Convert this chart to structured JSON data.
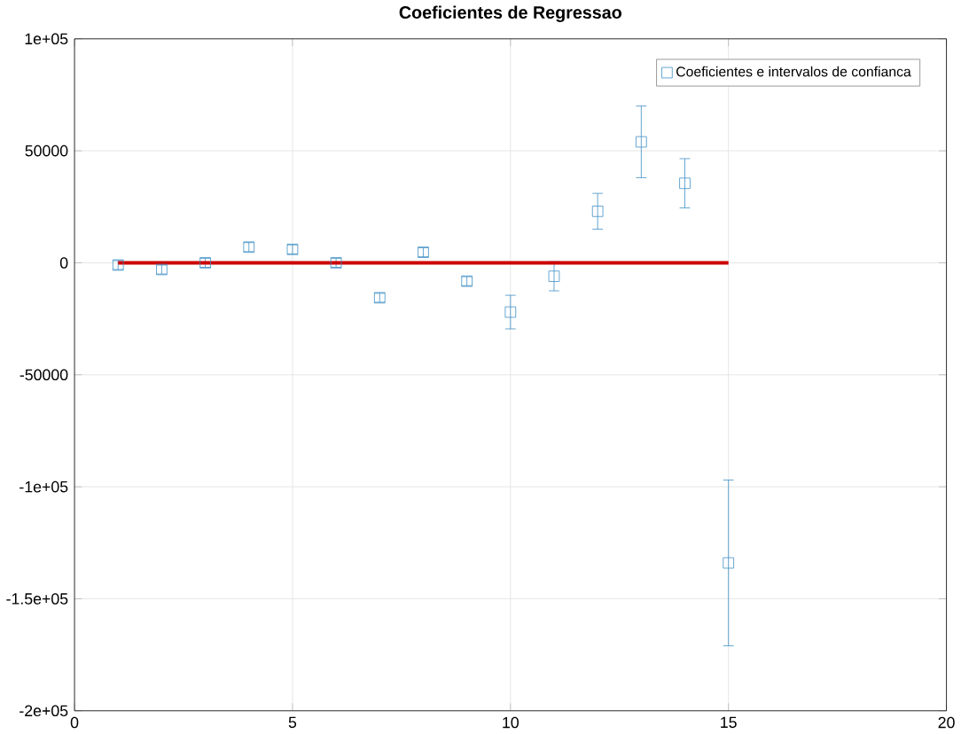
{
  "chart_data": {
    "type": "scatter",
    "title": "Coeficientes de Regressao",
    "x": [
      1,
      2,
      3,
      4,
      5,
      6,
      7,
      8,
      9,
      10,
      11,
      12,
      13,
      14,
      15
    ],
    "series": [
      {
        "name": "Coeficientes e intervalos de confianca",
        "color": "#3d8fc4",
        "marker": "square",
        "values": [
          -1000,
          -3000,
          0,
          7000,
          6000,
          0,
          -15600,
          4700,
          -8200,
          -22000,
          -6000,
          23000,
          54000,
          35500,
          -134000
        ],
        "errors": [
          2000,
          2000,
          2000,
          2000,
          2000,
          2000,
          2000,
          2000,
          2000,
          7500,
          6500,
          8000,
          16000,
          11000,
          37000
        ]
      },
      {
        "type": "line",
        "color": "#cc0000",
        "x": [
          1,
          15
        ],
        "values": [
          0,
          0
        ]
      }
    ],
    "xlim": [
      0,
      20
    ],
    "xticks": [
      0,
      5,
      10,
      15,
      20
    ],
    "ylim": [
      -200000,
      100000
    ],
    "yticks": [
      {
        "value": -200000,
        "label": "-2e+05"
      },
      {
        "value": -150000,
        "label": "-1.5e+05"
      },
      {
        "value": -100000,
        "label": "-1e+05"
      },
      -50000,
      0,
      50000,
      {
        "value": 100000,
        "label": "1e+05"
      }
    ],
    "grid": true,
    "legend": "top right"
  }
}
